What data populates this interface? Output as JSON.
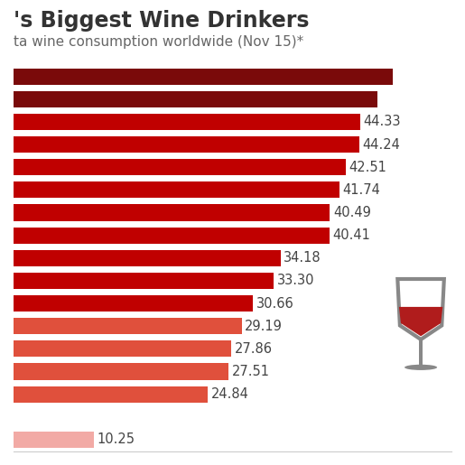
{
  "chart_data": {
    "type": "bar",
    "title": "'s Biggest Wine Drinkers",
    "subtitle": "ta wine consumption worldwide (Nov 15)*",
    "orientation": "horizontal",
    "categories": [
      null,
      null,
      null,
      null,
      null,
      null,
      null,
      null,
      null,
      null,
      null,
      null,
      null,
      null,
      null,
      null,
      null
    ],
    "values": [
      48.5,
      46.6,
      44.33,
      44.24,
      42.51,
      41.74,
      40.49,
      40.41,
      34.18,
      33.3,
      30.66,
      29.19,
      27.86,
      27.51,
      24.84,
      null,
      10.25
    ],
    "value_labels": [
      null,
      null,
      "44.33",
      "44.24",
      "42.51",
      "41.74",
      "40.49",
      "40.41",
      "34.18",
      "33.30",
      "30.66",
      "29.19",
      "27.86",
      "27.51",
      "24.84",
      null,
      "10.25"
    ],
    "colors": [
      "#7a0a0a",
      "#7a0a0a",
      "#c00000",
      "#c00000",
      "#c00000",
      "#c00000",
      "#c00000",
      "#c00000",
      "#c00000",
      "#c00000",
      "#c00000",
      "#e0503c",
      "#e0503c",
      "#e0503c",
      "#e0503c",
      null,
      "#f2aaa5"
    ],
    "xlim": [
      0,
      56
    ],
    "data_labels": true,
    "tick_labels": false,
    "grid": false
  }
}
